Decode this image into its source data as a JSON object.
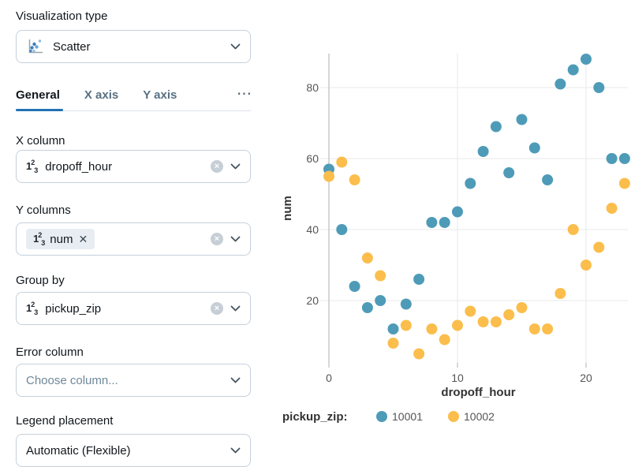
{
  "panel": {
    "viz_type_label": "Visualization type",
    "viz_type_value": "Scatter",
    "tabs": [
      {
        "label": "General",
        "active": true
      },
      {
        "label": "X axis",
        "active": false
      },
      {
        "label": "Y axis",
        "active": false
      }
    ],
    "tabs_overflow": "⋯",
    "fields": {
      "x_column": {
        "label": "X column",
        "value": "dropoff_hour"
      },
      "y_columns": {
        "label": "Y columns",
        "chip": "num"
      },
      "group_by": {
        "label": "Group by",
        "value": "pickup_zip"
      },
      "error_column": {
        "label": "Error column",
        "placeholder": "Choose column..."
      },
      "legend_placement": {
        "label": "Legend placement",
        "value": "Automatic (Flexible)"
      }
    }
  },
  "icons": {
    "number_base": "1",
    "number_sup": "2",
    "number_sub": "3",
    "clear": "×",
    "chip_remove": "✕",
    "ellipsis": "⋯"
  },
  "chart_data": {
    "type": "scatter",
    "xlabel": "dropoff_hour",
    "ylabel": "num",
    "x_ticks": [
      0,
      10,
      20
    ],
    "y_ticks": [
      20,
      40,
      60,
      80
    ],
    "xlim": [
      -0.7,
      23.5
    ],
    "ylim": [
      2,
      90
    ],
    "grid": true,
    "legend": {
      "title": "pickup_zip:",
      "position": "bottom"
    },
    "series": [
      {
        "name": "10001",
        "color": "#4E9BB8",
        "points": [
          [
            0,
            57
          ],
          [
            1,
            40
          ],
          [
            2,
            24
          ],
          [
            3,
            18
          ],
          [
            4,
            20
          ],
          [
            5,
            12
          ],
          [
            6,
            19
          ],
          [
            7,
            26
          ],
          [
            8,
            42
          ],
          [
            9,
            42
          ],
          [
            10,
            45
          ],
          [
            11,
            53
          ],
          [
            12,
            62
          ],
          [
            13,
            69
          ],
          [
            14,
            56
          ],
          [
            15,
            71
          ],
          [
            16,
            63
          ],
          [
            17,
            54
          ],
          [
            18,
            81
          ],
          [
            19,
            85
          ],
          [
            20,
            88
          ],
          [
            21,
            80
          ],
          [
            22,
            60
          ],
          [
            23,
            60
          ]
        ]
      },
      {
        "name": "10002",
        "color": "#FBBE4C",
        "points": [
          [
            0,
            55
          ],
          [
            1,
            59
          ],
          [
            2,
            54
          ],
          [
            3,
            32
          ],
          [
            4,
            27
          ],
          [
            5,
            8
          ],
          [
            6,
            13
          ],
          [
            7,
            5
          ],
          [
            8,
            12
          ],
          [
            9,
            9
          ],
          [
            10,
            13
          ],
          [
            11,
            17
          ],
          [
            12,
            14
          ],
          [
            13,
            14
          ],
          [
            14,
            16
          ],
          [
            15,
            18
          ],
          [
            16,
            12
          ],
          [
            17,
            12
          ],
          [
            18,
            22
          ],
          [
            19,
            40
          ],
          [
            20,
            30
          ],
          [
            21,
            35
          ],
          [
            22,
            46
          ],
          [
            23,
            53
          ]
        ]
      }
    ]
  }
}
